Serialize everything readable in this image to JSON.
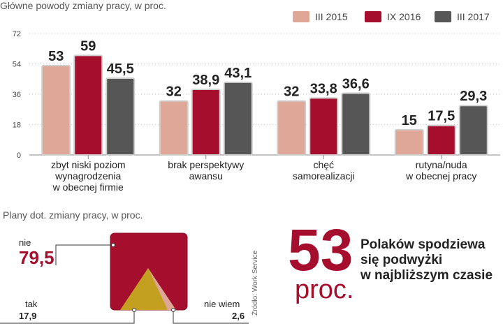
{
  "chart_data": [
    {
      "type": "bar",
      "title": "Główne powody zmiany pracy, w proc.",
      "categories": [
        [
          "zbyt niski poziom",
          "wynagrodzenia",
          "w obecnej firmie"
        ],
        [
          "brak perspektywy",
          "awansu"
        ],
        [
          "chęć",
          "samorealizacji"
        ],
        [
          "rutyna/nuda",
          "w obecnej pracy"
        ]
      ],
      "series": [
        {
          "name": "III 2015",
          "color": "#dea797",
          "values": [
            53,
            32,
            32,
            15
          ],
          "labels": [
            "53",
            "32",
            "32",
            "15"
          ]
        },
        {
          "name": "IX 2016",
          "color": "#a50e2d",
          "values": [
            59,
            38.9,
            33.8,
            17.5
          ],
          "labels": [
            "59",
            "38,9",
            "33,8",
            "17,5"
          ]
        },
        {
          "name": "III 2017",
          "color": "#565656",
          "values": [
            45.5,
            43.1,
            36.6,
            29.3
          ],
          "labels": [
            "45,5",
            "43,1",
            "36,6",
            "29,3"
          ]
        }
      ],
      "yticks": [
        "0",
        "18",
        "36",
        "54",
        "72"
      ],
      "ylim": [
        0,
        72
      ],
      "legend_position": "top-right"
    },
    {
      "type": "pie",
      "title": "Plany dot. zmiany pracy, w proc.",
      "slices": [
        {
          "label": "nie",
          "value": 79.5,
          "value_label": "79,5",
          "color": "#a50e2d"
        },
        {
          "label": "tak",
          "value": 17.9,
          "value_label": "17,9",
          "color": "#c4a020"
        },
        {
          "label": "nie wiem",
          "value": 2.6,
          "value_label": "2,6",
          "color": "#dea797"
        }
      ]
    }
  ],
  "highlight": {
    "number": "53",
    "unit": "proc.",
    "text": [
      "Polaków spodziewa",
      "się podwyżki",
      "w najbliższym czasie"
    ]
  },
  "source": "Źródło: Work Service"
}
